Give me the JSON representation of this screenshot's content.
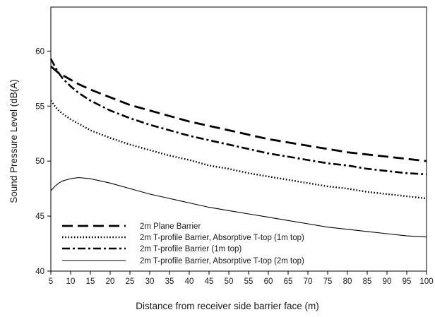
{
  "chart_data": {
    "type": "line",
    "xlabel": "Distance from receiver side barrier face (m)",
    "ylabel": "Sound Pressure Level (dB(A)",
    "xlim": [
      5,
      100
    ],
    "ylim": [
      40,
      64
    ],
    "xticks": [
      5,
      10,
      15,
      20,
      25,
      30,
      35,
      40,
      45,
      50,
      55,
      60,
      65,
      70,
      75,
      80,
      85,
      90,
      95,
      100
    ],
    "yticks": [
      40,
      45,
      50,
      55,
      60
    ],
    "grid": false,
    "legend_position": "bottom-left",
    "x": [
      5,
      6,
      7,
      8,
      10,
      12,
      15,
      20,
      25,
      30,
      35,
      40,
      45,
      50,
      55,
      60,
      65,
      70,
      75,
      80,
      85,
      90,
      95,
      100
    ],
    "series": [
      {
        "name": "2m Plane Barrier",
        "style": "long-dash",
        "color": "#000000",
        "values": [
          58.6,
          58.3,
          58.0,
          57.8,
          57.4,
          57.0,
          56.5,
          55.8,
          55.1,
          54.6,
          54.1,
          53.6,
          53.2,
          52.8,
          52.4,
          52.0,
          51.7,
          51.4,
          51.1,
          50.8,
          50.6,
          50.4,
          50.2,
          50.0
        ]
      },
      {
        "name": "2m T-profile Barrier, Absorptive T-top (1m top)",
        "style": "dotted",
        "color": "#000000",
        "values": [
          55.5,
          55.0,
          54.6,
          54.3,
          53.8,
          53.4,
          52.8,
          52.1,
          51.5,
          51.0,
          50.5,
          50.1,
          49.6,
          49.3,
          48.9,
          48.6,
          48.3,
          48.0,
          47.7,
          47.5,
          47.2,
          47.0,
          46.8,
          46.6
        ]
      },
      {
        "name": "2m T-profile Barrier (1m top)",
        "style": "dash-dot",
        "color": "#000000",
        "values": [
          59.3,
          58.6,
          58.0,
          57.5,
          56.8,
          56.2,
          55.5,
          54.6,
          53.9,
          53.3,
          52.8,
          52.3,
          51.9,
          51.5,
          51.1,
          50.7,
          50.4,
          50.1,
          49.8,
          49.6,
          49.3,
          49.1,
          48.9,
          48.8
        ]
      },
      {
        "name": "2m T-profile Barrier, Absorptive T-top (2m top)",
        "style": "thin-solid",
        "color": "#000000",
        "values": [
          47.3,
          47.7,
          48.0,
          48.2,
          48.4,
          48.5,
          48.4,
          48.0,
          47.5,
          47.0,
          46.6,
          46.2,
          45.8,
          45.5,
          45.2,
          44.9,
          44.6,
          44.3,
          44.0,
          43.8,
          43.6,
          43.4,
          43.2,
          43.1
        ]
      }
    ]
  }
}
